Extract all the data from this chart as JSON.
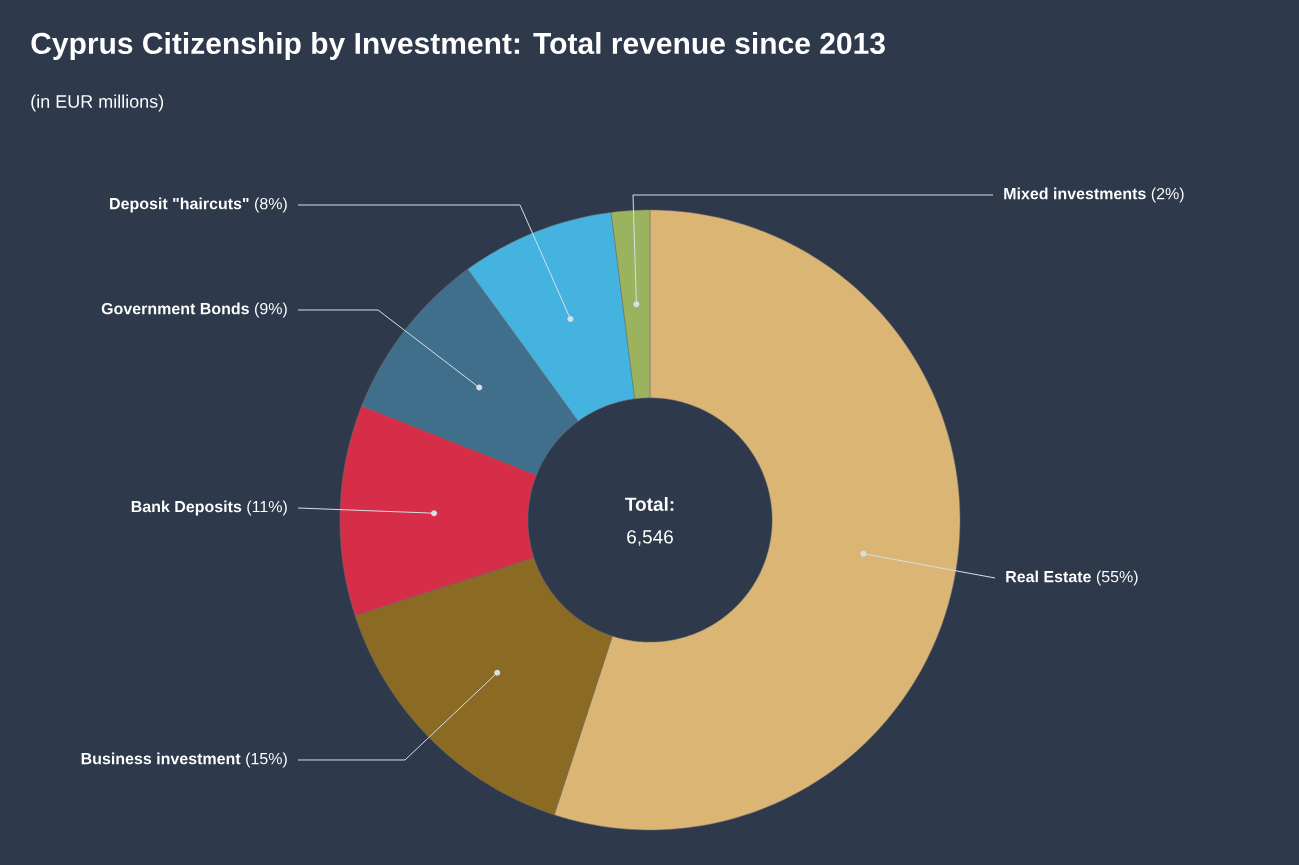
{
  "chart_data": {
    "type": "donut",
    "title": "Cyprus Citizenship by Investment: Total revenue since 2013",
    "subtitle": "(in EUR millions)",
    "categories": [
      "Real Estate",
      "Business investment",
      "Bank Deposits",
      "Government Bonds",
      "Deposit \"haircuts\"",
      "Mixed investments"
    ],
    "values": [
      55,
      15,
      11,
      9,
      8,
      2
    ],
    "colors": [
      "#dbb574",
      "#8b6a23",
      "#d62d48",
      "#3f6f8a",
      "#45b3e0",
      "#9bb25e"
    ],
    "value_labels": [
      "(55%)",
      "(15%)",
      "(11%)",
      "(9%)",
      "(8%)",
      "(2%)"
    ],
    "annotations": [
      "Total:",
      "6,546"
    ]
  }
}
